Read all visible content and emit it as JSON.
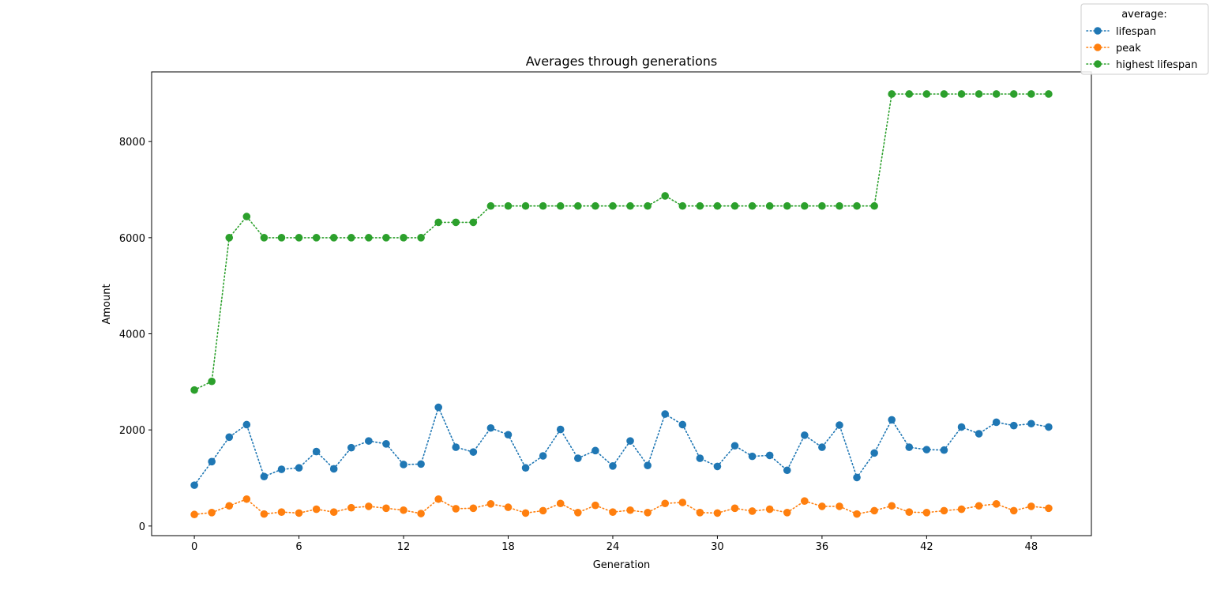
{
  "chart_data": {
    "type": "line",
    "title": "Averages through generations",
    "xlabel": "Generation",
    "ylabel": "Amount",
    "xlim": [
      -2.45,
      51.45
    ],
    "ylim": [
      -200,
      9450
    ],
    "xticks": [
      0,
      6,
      12,
      18,
      24,
      30,
      36,
      42,
      48
    ],
    "yticks": [
      0,
      2000,
      4000,
      6000,
      8000
    ],
    "grid": false,
    "legend": {
      "title": "average:",
      "placement": "top-right (outside)"
    },
    "line_style": "dotted",
    "x": [
      0,
      1,
      2,
      3,
      4,
      5,
      6,
      7,
      8,
      9,
      10,
      11,
      12,
      13,
      14,
      15,
      16,
      17,
      18,
      19,
      20,
      21,
      22,
      23,
      24,
      25,
      26,
      27,
      28,
      29,
      30,
      31,
      32,
      33,
      34,
      35,
      36,
      37,
      38,
      39,
      40,
      41,
      42,
      43,
      44,
      45,
      46,
      47,
      48,
      49
    ],
    "series": [
      {
        "name": "lifespan",
        "color": "#1f77b4",
        "values": [
          850,
          1340,
          1850,
          2110,
          1030,
          1180,
          1210,
          1550,
          1190,
          1630,
          1770,
          1710,
          1280,
          1290,
          2470,
          1640,
          1540,
          2040,
          1900,
          1210,
          1460,
          2010,
          1410,
          1570,
          1250,
          1770,
          1260,
          2330,
          2110,
          1410,
          1240,
          1670,
          1450,
          1470,
          1160,
          1890,
          1640,
          2100,
          1010,
          1520,
          2210,
          1640,
          1590,
          1580,
          2060,
          1920,
          2160,
          2090,
          2130,
          2060
        ]
      },
      {
        "name": "peak",
        "color": "#ff7f0e",
        "values": [
          240,
          280,
          420,
          560,
          250,
          290,
          270,
          350,
          290,
          380,
          410,
          370,
          330,
          260,
          560,
          360,
          370,
          460,
          390,
          270,
          320,
          470,
          280,
          430,
          290,
          330,
          280,
          470,
          490,
          280,
          270,
          370,
          310,
          350,
          280,
          520,
          410,
          410,
          250,
          320,
          420,
          290,
          280,
          320,
          350,
          420,
          460,
          320,
          410,
          370
        ]
      },
      {
        "name": "highest lifespan",
        "color": "#2ca02c",
        "values": [
          2830,
          3010,
          6000,
          6440,
          6000,
          6000,
          6000,
          6000,
          6000,
          6000,
          6000,
          6000,
          6000,
          6000,
          6320,
          6320,
          6320,
          6660,
          6660,
          6660,
          6660,
          6660,
          6660,
          6660,
          6660,
          6660,
          6660,
          6870,
          6660,
          6660,
          6660,
          6660,
          6660,
          6660,
          6660,
          6660,
          6660,
          6660,
          6660,
          6660,
          8990,
          8990,
          8990,
          8990,
          8990,
          8990,
          8990,
          8990,
          8990,
          8990
        ]
      }
    ]
  }
}
